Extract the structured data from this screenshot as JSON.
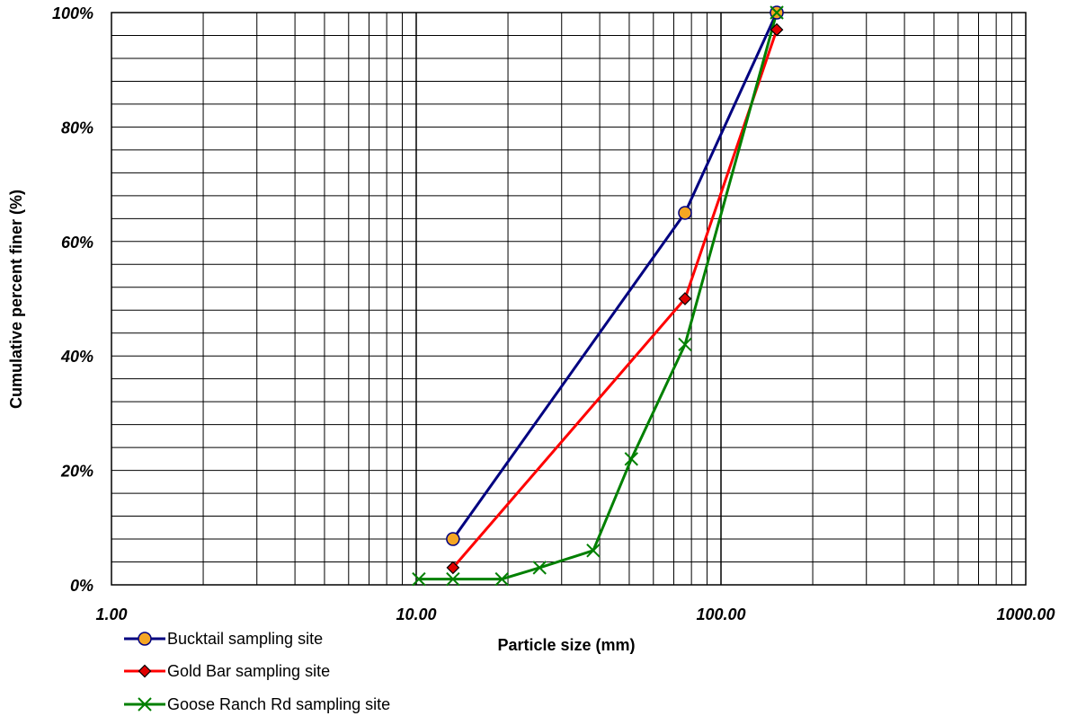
{
  "chart_data": {
    "type": "line",
    "xlabel": "Particle size (mm)",
    "ylabel": "Cumulative percent finer (%)",
    "x_scale": "log",
    "xlim": [
      1,
      1000
    ],
    "ylim": [
      0,
      100
    ],
    "x_tick_labels": [
      "1.00",
      "10.00",
      "100.00",
      "1000.00"
    ],
    "x_tick_values": [
      1,
      10,
      100,
      1000
    ],
    "y_tick_labels": [
      "0%",
      "20%",
      "40%",
      "60%",
      "80%",
      "100%"
    ],
    "y_tick_values": [
      0,
      20,
      40,
      60,
      80,
      100
    ],
    "y_minor_step": 4,
    "grid": true,
    "legend_position": "bottom-left",
    "series": [
      {
        "name": "Bucktail sampling site",
        "color": "#000080",
        "marker": "circle",
        "marker_fill": "#F5A623",
        "x": [
          13.2,
          76.2,
          152.4
        ],
        "y": [
          8,
          65,
          100
        ]
      },
      {
        "name": "Gold Bar sampling site",
        "color": "#FF0000",
        "marker": "diamond",
        "marker_fill": "#E00000",
        "x": [
          13.2,
          76.2,
          152.4
        ],
        "y": [
          3,
          50,
          97
        ]
      },
      {
        "name": "Goose Ranch Rd sampling site",
        "color": "#008000",
        "marker": "x",
        "marker_fill": "#008000",
        "x": [
          10.2,
          13.2,
          19.1,
          25.4,
          38.1,
          50.8,
          76.2,
          152.4
        ],
        "y": [
          1,
          1,
          1,
          3,
          6,
          22,
          42,
          100
        ]
      }
    ]
  }
}
